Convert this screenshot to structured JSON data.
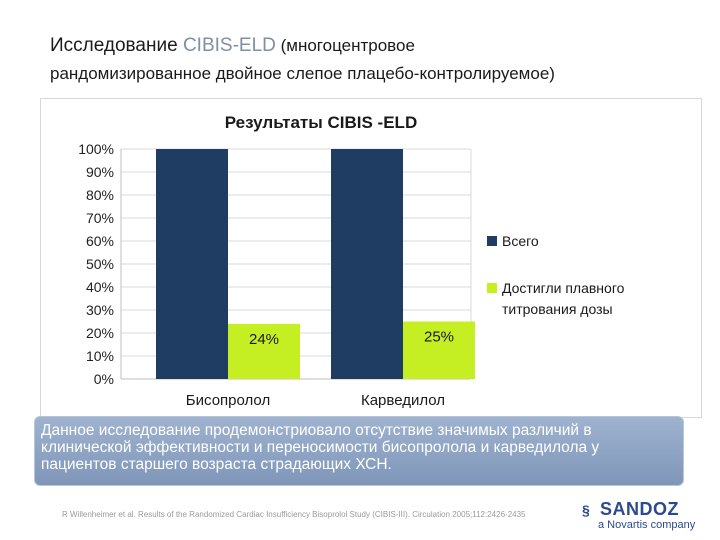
{
  "slide": {
    "title_part1": "Исследование ",
    "title_accent": "CIBIS-ELD",
    "title_part2": " (многоцентровое",
    "title_line2": "рандомизированное двойное слепое плацебо-контролируемое)"
  },
  "chart_data": {
    "type": "bar",
    "title": "Результаты CIBIS -ELD",
    "categories": [
      "Бисопролол",
      "Карведилол"
    ],
    "series": [
      {
        "name": "Всего",
        "values": [
          100,
          100
        ],
        "color": "#1f3d63"
      },
      {
        "name": "Достигли плавного титрования дозы",
        "values": [
          24,
          25
        ],
        "color": "#c5ef22"
      }
    ],
    "data_labels": [
      "24%",
      "25%"
    ],
    "yticks": [
      "0%",
      "10%",
      "20%",
      "30%",
      "40%",
      "50%",
      "60%",
      "70%",
      "80%",
      "90%",
      "100%"
    ],
    "ylim": [
      0,
      100
    ],
    "grid": true,
    "legend_position": "right",
    "legend_lines": [
      "Всего",
      "Достигли плавного",
      "титрования дозы"
    ]
  },
  "note": {
    "text": "Данное исследование продемонстриовало отсутствие значимых различий в клинической эффективности и переносимости бисопролола и карведилола у пациентов старшего возраста страдающих ХСН."
  },
  "citation": "R Willenheimer et al. Results of the Randomized Cardiac Insufficiency Bisoprolol Study (CIBIS-III). Circulation 2005;112:2426-2435",
  "logo": {
    "name": "SANDOZ",
    "subtitle": "a Novartis company",
    "mark_icon": "sandoz-logo-icon"
  }
}
